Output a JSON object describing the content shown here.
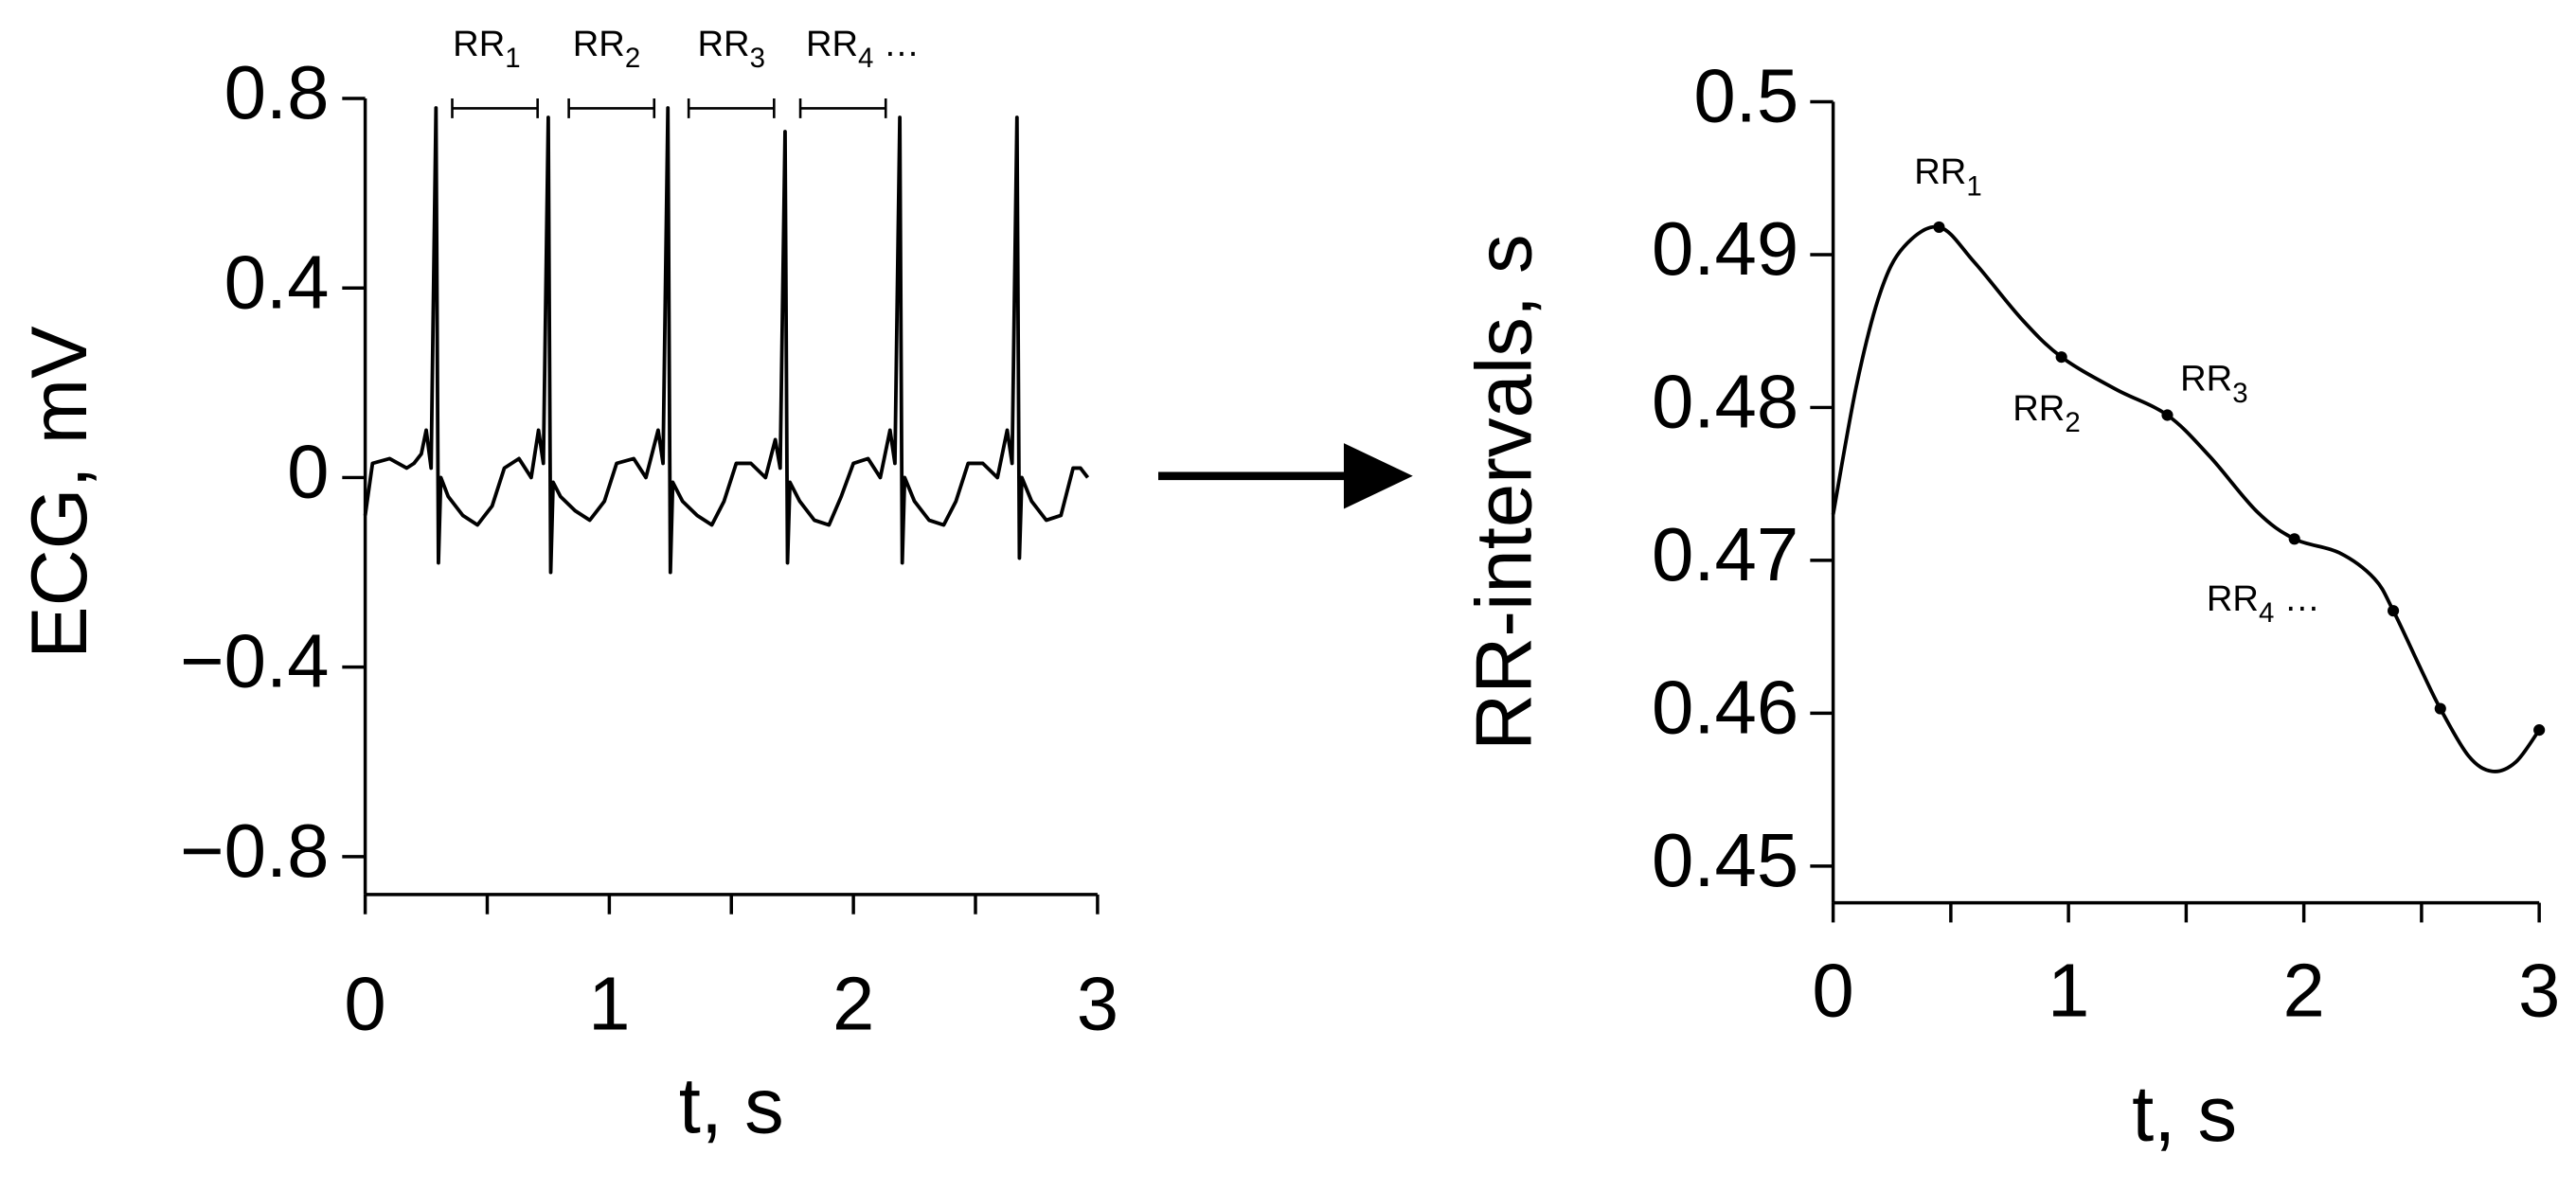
{
  "chart_data": [
    {
      "type": "line",
      "y_label": "ECG, mV",
      "x_label": "t, s",
      "xlim": [
        0,
        3
      ],
      "xticks": [
        0,
        1,
        2,
        3
      ],
      "x_minor_ticks": [
        0.5,
        1.5,
        2.5
      ],
      "ylim": [
        -0.88,
        0.8
      ],
      "yticks": [
        {
          "value": -0.8,
          "label": "−0.8"
        },
        {
          "value": -0.4,
          "label": "−0.4"
        },
        0,
        0.4,
        0.8
      ],
      "series": [
        {
          "color": "#000000",
          "mode": "line",
          "x": [
            0,
            0.03,
            0.1,
            0.17,
            0.2,
            0.23,
            0.25,
            0.27,
            0.29,
            0.3,
            0.31,
            0.34,
            0.4,
            0.46,
            0.52,
            0.57,
            0.63,
            0.68,
            0.71,
            0.73,
            0.75,
            0.76,
            0.77,
            0.8,
            0.86,
            0.92,
            0.98,
            1.03,
            1.1,
            1.15,
            1.2,
            1.22,
            1.24,
            1.25,
            1.26,
            1.3,
            1.36,
            1.42,
            1.47,
            1.52,
            1.58,
            1.64,
            1.68,
            1.7,
            1.72,
            1.73,
            1.74,
            1.78,
            1.84,
            1.9,
            1.95,
            2.0,
            2.06,
            2.11,
            2.15,
            2.17,
            2.19,
            2.2,
            2.21,
            2.25,
            2.31,
            2.37,
            2.42,
            2.47,
            2.53,
            2.59,
            2.63,
            2.65,
            2.67,
            2.68,
            2.69,
            2.73,
            2.79,
            2.85,
            2.9,
            2.93,
            2.96
          ],
          "values": [
            -0.08,
            0.03,
            0.04,
            0.02,
            0.03,
            0.05,
            0.1,
            0.02,
            0.78,
            -0.18,
            0.0,
            -0.04,
            -0.08,
            -0.1,
            -0.06,
            0.02,
            0.04,
            0.0,
            0.1,
            0.03,
            0.76,
            -0.2,
            -0.01,
            -0.04,
            -0.07,
            -0.09,
            -0.05,
            0.03,
            0.04,
            0.0,
            0.1,
            0.03,
            0.78,
            -0.2,
            -0.01,
            -0.05,
            -0.08,
            -0.1,
            -0.05,
            0.03,
            0.03,
            0.0,
            0.08,
            0.02,
            0.73,
            -0.18,
            -0.01,
            -0.05,
            -0.09,
            -0.1,
            -0.04,
            0.03,
            0.04,
            0.0,
            0.1,
            0.03,
            0.76,
            -0.18,
            0.0,
            -0.05,
            -0.09,
            -0.1,
            -0.05,
            0.03,
            0.03,
            0.0,
            0.1,
            0.03,
            0.76,
            -0.17,
            0.0,
            -0.05,
            -0.09,
            -0.08,
            0.02,
            0.02,
            0.0
          ]
        }
      ],
      "annotations": [
        {
          "text": "RR",
          "sub": "1"
        },
        {
          "text": "RR",
          "sub": "2"
        },
        {
          "text": "RR",
          "sub": "3"
        },
        {
          "text": "RR",
          "sub": "4",
          "suffix": "…"
        }
      ]
    },
    {
      "type": "line",
      "y_label": "RR-intervals, s",
      "x_label": "t, s",
      "xlim": [
        0,
        3
      ],
      "xticks": [
        0,
        1,
        2,
        3
      ],
      "x_minor_ticks": [
        0.5,
        1.5,
        2.5
      ],
      "ylim": [
        0.4476,
        0.5
      ],
      "yticks": [
        0.45,
        0.46,
        0.47,
        0.48,
        0.49,
        0.5
      ],
      "series": [
        {
          "color": "#000000",
          "mode": "smooth",
          "x": [
            0,
            0.1,
            0.2,
            0.3,
            0.45,
            0.6,
            0.8,
            0.97,
            1.2,
            1.42,
            1.6,
            1.8,
            1.96,
            2.15,
            2.3,
            2.38,
            2.5,
            2.58,
            2.7,
            2.8,
            2.9,
            3.0
          ],
          "values": [
            0.473,
            0.4815,
            0.4875,
            0.4905,
            0.4918,
            0.4895,
            0.4858,
            0.4833,
            0.4812,
            0.4795,
            0.4768,
            0.4732,
            0.4714,
            0.4705,
            0.4688,
            0.4667,
            0.4628,
            0.4603,
            0.4572,
            0.4562,
            0.4568,
            0.4589
          ]
        },
        {
          "color": "#000000",
          "mode": "points",
          "x": [
            0.45,
            0.97,
            1.42,
            1.96,
            2.38,
            2.58,
            3.0
          ],
          "values": [
            0.4918,
            0.4833,
            0.4795,
            0.4714,
            0.4667,
            0.4603,
            0.4589
          ]
        }
      ],
      "annotations": [
        {
          "text": "RR",
          "sub": "1"
        },
        {
          "text": "RR",
          "sub": "2"
        },
        {
          "text": "RR",
          "sub": "3"
        },
        {
          "text": "RR",
          "sub": "4",
          "suffix": "…"
        }
      ]
    }
  ]
}
